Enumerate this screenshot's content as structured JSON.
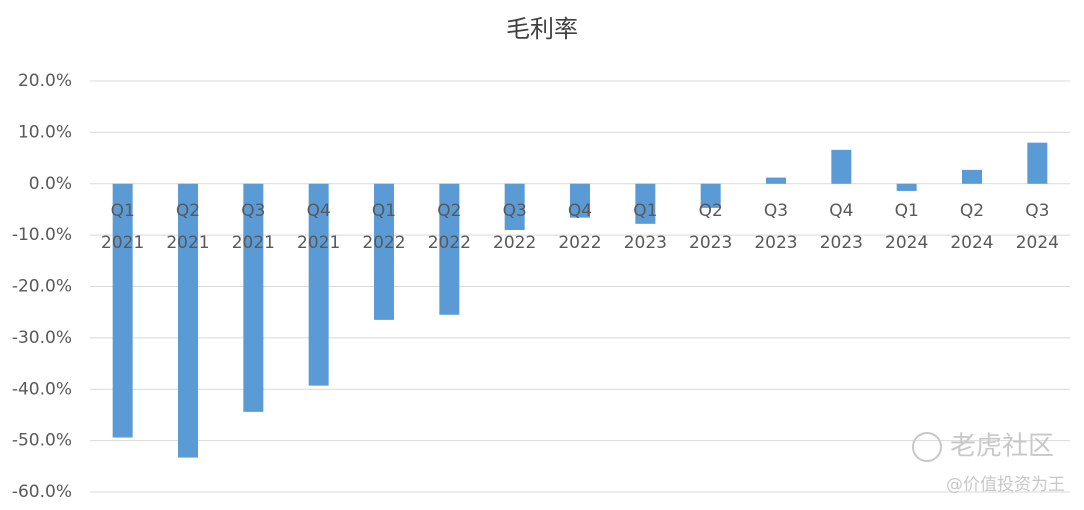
{
  "chart_data": {
    "type": "bar",
    "title": "毛利率",
    "categories": [
      [
        "Q1",
        "2021"
      ],
      [
        "Q2",
        "2021"
      ],
      [
        "Q3",
        "2021"
      ],
      [
        "Q4",
        "2021"
      ],
      [
        "Q1",
        "2022"
      ],
      [
        "Q2",
        "2022"
      ],
      [
        "Q3",
        "2022"
      ],
      [
        "Q4",
        "2022"
      ],
      [
        "Q1",
        "2023"
      ],
      [
        "Q2",
        "2023"
      ],
      [
        "Q3",
        "2023"
      ],
      [
        "Q4",
        "2023"
      ],
      [
        "Q1",
        "2024"
      ],
      [
        "Q2",
        "2024"
      ],
      [
        "Q3",
        "2024"
      ]
    ],
    "values": [
      -49.4,
      -53.3,
      -44.4,
      -39.3,
      -26.5,
      -25.5,
      -9.0,
      -6.6,
      -7.8,
      -4.7,
      1.2,
      6.6,
      -1.4,
      2.7,
      8.0
    ],
    "color": "#5b9bd5",
    "ylim": [
      -60,
      20
    ],
    "yticks": [
      {
        "value": -60,
        "label": "-60.0%"
      },
      {
        "value": -50,
        "label": "-50.0%"
      },
      {
        "value": -40,
        "label": "-40.0%"
      },
      {
        "value": -30,
        "label": "-30.0%"
      },
      {
        "value": -20,
        "label": "-20.0%"
      },
      {
        "value": -10,
        "label": "-10.0%"
      },
      {
        "value": 0,
        "label": "0.0%"
      },
      {
        "value": 10,
        "label": "10.0%"
      },
      {
        "value": 20,
        "label": "20.0%"
      }
    ],
    "grid": true
  },
  "watermark": {
    "brand": "老虎社区",
    "author": "@价值投资为王"
  }
}
